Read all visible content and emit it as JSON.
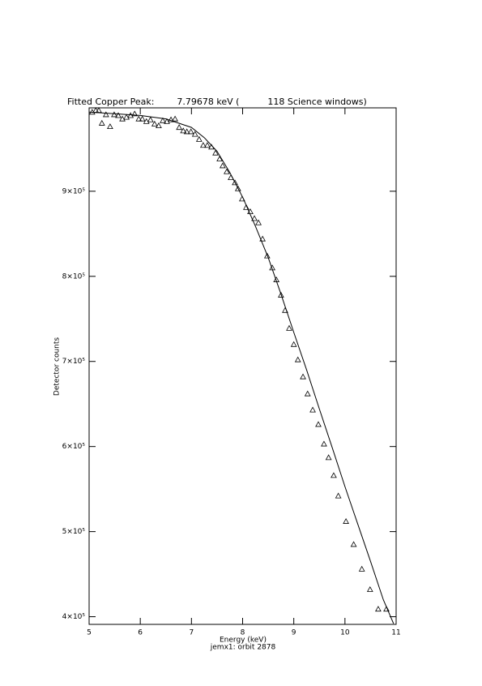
{
  "chart_data": {
    "type": "scatter",
    "title": "Fitted Copper Peak:        7.79678 keV (          118 Science windows)",
    "x_label": "Energy (keV)",
    "subtitle": "jemx1: orbit 2878",
    "y_label": "Detector counts",
    "color": "#000000",
    "xlim": [
      5,
      11
    ],
    "ylim": [
      391000,
      998000
    ],
    "xticks": [
      5,
      6,
      7,
      8,
      9,
      10,
      11
    ],
    "yticks": [
      {
        "value": 400000,
        "label": "4×10⁵"
      },
      {
        "value": 500000,
        "label": "5×10⁵"
      },
      {
        "value": 600000,
        "label": "6×10⁵"
      },
      {
        "value": 700000,
        "label": "7×10⁵"
      },
      {
        "value": 800000,
        "label": "8×10⁵"
      },
      {
        "value": 900000,
        "label": "9×10⁵"
      }
    ],
    "points": {
      "x": [
        5.06,
        5.13,
        5.19,
        5.25,
        5.33,
        5.41,
        5.49,
        5.57,
        5.65,
        5.73,
        5.81,
        5.89,
        5.97,
        6.04,
        6.12,
        6.2,
        6.28,
        6.36,
        6.44,
        6.52,
        6.6,
        6.68,
        6.76,
        6.84,
        6.91,
        6.99,
        7.07,
        7.15,
        7.23,
        7.31,
        7.39,
        7.47,
        7.55,
        7.61,
        7.69,
        7.77,
        7.85,
        7.91,
        7.99,
        8.07,
        8.15,
        8.23,
        8.31,
        8.39,
        8.48,
        8.58,
        8.66,
        8.75,
        8.83,
        8.91,
        9.0,
        9.08,
        9.18,
        9.27,
        9.37,
        9.48,
        9.59,
        9.68,
        9.78,
        9.87,
        10.02,
        10.17,
        10.33,
        10.49,
        10.65,
        10.81
      ],
      "y": [
        993000,
        995000,
        995000,
        980000,
        990000,
        976000,
        990000,
        989000,
        985000,
        987000,
        989000,
        991000,
        985000,
        985000,
        982000,
        984000,
        979000,
        977000,
        983000,
        982000,
        984000,
        985000,
        975000,
        971000,
        970000,
        970000,
        967000,
        961000,
        954000,
        954000,
        952000,
        945000,
        938000,
        930000,
        923000,
        916000,
        910000,
        903000,
        891000,
        881000,
        876000,
        868000,
        863000,
        844000,
        824000,
        810000,
        796000,
        778000,
        760000,
        739000,
        720000,
        702000,
        682000,
        662000,
        643000,
        626000,
        603000,
        587000,
        566000,
        542000,
        512000,
        485000,
        456000,
        432000,
        409000,
        409000
      ]
    },
    "fit": {
      "x": [
        5,
        5.5,
        6,
        6.5,
        7,
        7.25,
        7.5,
        7.75,
        8,
        8.25,
        8.5,
        8.75,
        9,
        9.25,
        9.5,
        9.75,
        10,
        10.25,
        10.5,
        10.75,
        10.95
      ],
      "y": [
        993000,
        991000,
        989000,
        985000,
        975000,
        963000,
        947000,
        922000,
        893000,
        859000,
        822000,
        779000,
        734000,
        690000,
        644000,
        599000,
        553000,
        509000,
        465000,
        420000,
        392000
      ]
    }
  }
}
